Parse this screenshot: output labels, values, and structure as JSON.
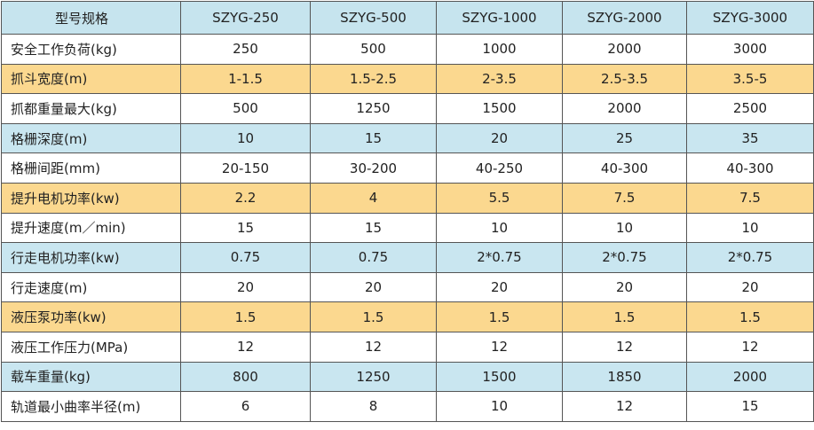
{
  "table": {
    "header": [
      "型号规格",
      "SZYG-250",
      "SZYG-500",
      "SZYG-1000",
      "SZYG-2000",
      "SZYG-3000"
    ],
    "rows": [
      [
        "安全工作负荷(kg)",
        "250",
        "500",
        "1000",
        "2000",
        "3000"
      ],
      [
        "抓斗宽度(m)",
        "1-1.5",
        "1.5-2.5",
        "2-3.5",
        "2.5-3.5",
        "3.5-5"
      ],
      [
        "抓都重量最大(kg)",
        "500",
        "1250",
        "1500",
        "2000",
        "2500"
      ],
      [
        "格栅深度(m)",
        "10",
        "15",
        "20",
        "25",
        "35"
      ],
      [
        "格栅间距(mm)",
        "20-150",
        "30-200",
        "40-250",
        "40-300",
        "40-300"
      ],
      [
        "提升电机功率(kw)",
        "2.2",
        "4",
        "5.5",
        "7.5",
        "7.5"
      ],
      [
        "提升速度(m／min)",
        "15",
        "15",
        "10",
        "10",
        "10"
      ],
      [
        "行走电机功率(kw)",
        "0.75",
        "0.75",
        "2*0.75",
        "2*0.75",
        "2*0.75"
      ],
      [
        "行走速度(m)",
        "20",
        "20",
        "20",
        "20",
        "20"
      ],
      [
        "液压泵功率(kw)",
        "1.5",
        "1.5",
        "1.5",
        "1.5",
        "1.5"
      ],
      [
        "液压工作压力(MPa)",
        "12",
        "12",
        "12",
        "12",
        "12"
      ],
      [
        "载车重量(kg)",
        "800",
        "1250",
        "1500",
        "1850",
        "2000"
      ],
      [
        "轨道最小曲率半径(m)",
        "6",
        "8",
        "10",
        "12",
        "15"
      ]
    ]
  }
}
